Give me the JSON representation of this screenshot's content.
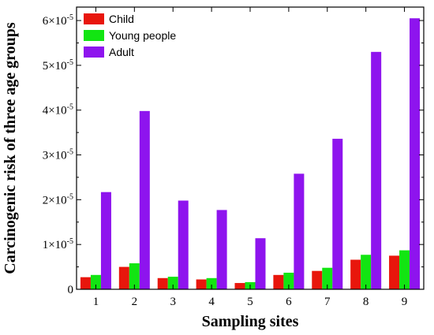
{
  "chart_data": {
    "type": "bar",
    "xlabel": "Sampling sites",
    "ylabel": "Carcinogenic risk of three age groups",
    "categories": [
      "1",
      "2",
      "3",
      "4",
      "5",
      "6",
      "7",
      "8",
      "9"
    ],
    "ylim": [
      0,
      6.3e-05
    ],
    "yticks": [
      0,
      1e-05,
      2e-05,
      3e-05,
      4e-05,
      5e-05,
      6e-05
    ],
    "ytick_labels": [
      {
        "value": 0,
        "mantissa": "0",
        "exponent": ""
      },
      {
        "value": 1e-05,
        "mantissa": "1×10",
        "exponent": "-5"
      },
      {
        "value": 2e-05,
        "mantissa": "2×10",
        "exponent": "-5"
      },
      {
        "value": 3e-05,
        "mantissa": "3×10",
        "exponent": "-5"
      },
      {
        "value": 4e-05,
        "mantissa": "4×10",
        "exponent": "-5"
      },
      {
        "value": 5e-05,
        "mantissa": "5×10",
        "exponent": "-5"
      },
      {
        "value": 6e-05,
        "mantissa": "6×10",
        "exponent": "-5"
      }
    ],
    "series": [
      {
        "name": "Child",
        "color": "#e8160c",
        "values": [
          2.7e-06,
          5e-06,
          2.5e-06,
          2.2e-06,
          1.4e-06,
          3.2e-06,
          4.1e-06,
          6.6e-06,
          7.5e-06
        ]
      },
      {
        "name": "Young people",
        "color": "#12e512",
        "values": [
          3.2e-06,
          5.8e-06,
          2.8e-06,
          2.5e-06,
          1.6e-06,
          3.7e-06,
          4.8e-06,
          7.7e-06,
          8.7e-06
        ]
      },
      {
        "name": "Adult",
        "color": "#8e14ee",
        "values": [
          2.17e-05,
          3.98e-05,
          1.98e-05,
          1.77e-05,
          1.14e-05,
          2.58e-05,
          3.36e-05,
          5.3e-05,
          6.05e-05
        ]
      }
    ],
    "legend_position": "top-left",
    "grid": false
  }
}
